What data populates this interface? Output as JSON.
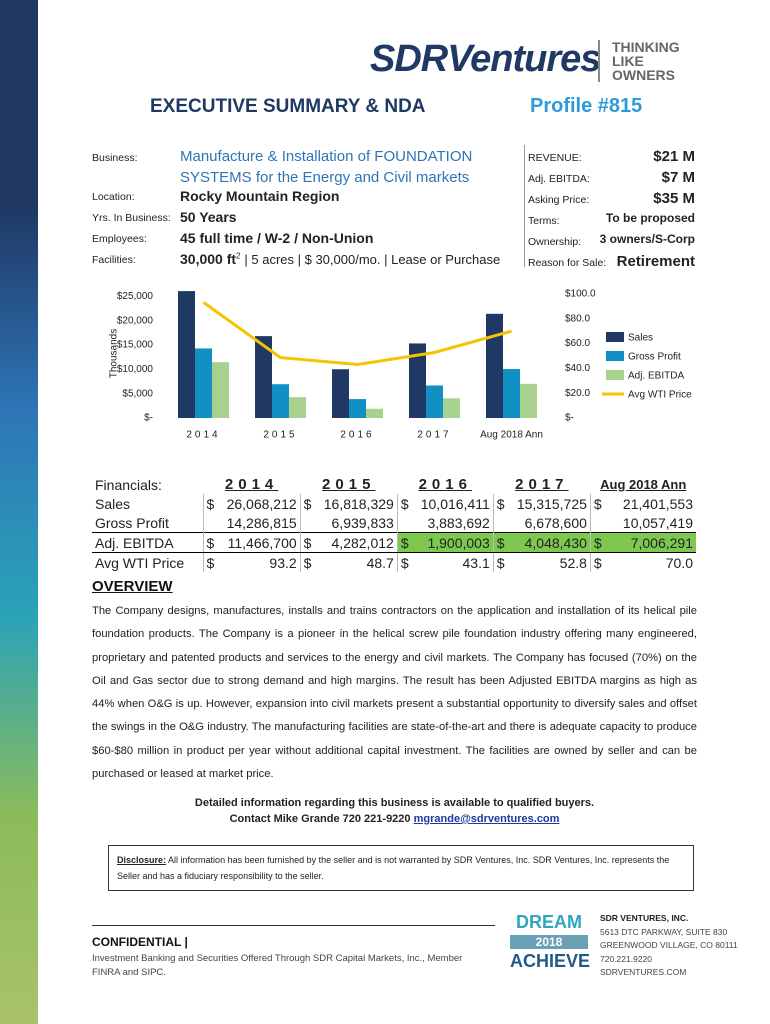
{
  "header": {
    "logo": "SDRVentures",
    "tagline": [
      "THINKING",
      "LIKE",
      "OWNERS"
    ],
    "title": "EXECUTIVE SUMMARY & NDA",
    "profile": "Profile #815"
  },
  "business_info": [
    {
      "label": "Business:",
      "value": "Manufacture & Installation of FOUNDATION SYSTEMS for the Energy and Civil markets"
    },
    {
      "label": "Location:",
      "value": "Rocky Mountain Region"
    },
    {
      "label": "Yrs. In Business:",
      "value": "50 Years"
    },
    {
      "label": "Employees:",
      "value": "45 full time / W-2 / Non-Union"
    }
  ],
  "facilities": {
    "label": "Facilities:",
    "area": "30,000 ft",
    "sup": "2",
    "rest": "| 5 acres | $ 30,000/mo. | Lease or Purchase"
  },
  "deal_info": [
    {
      "label": "REVENUE:",
      "value": "$21 M"
    },
    {
      "label": "Adj. EBITDA:",
      "value": "$7 M"
    },
    {
      "label": "Asking Price:",
      "value": "$35 M"
    },
    {
      "label": "Terms:",
      "value": "To be proposed"
    },
    {
      "label": "Ownership:",
      "value": "3 owners/S-Corp"
    },
    {
      "label": "Reason for Sale:",
      "value": "Retirement"
    }
  ],
  "chart_data": {
    "type": "bar",
    "y_label": "Thousands",
    "categories": [
      "2014",
      "2015",
      "2016",
      "2017",
      "Aug 2018 Ann"
    ],
    "series": [
      {
        "name": "Sales",
        "color": "#1f3864",
        "values": [
          26068,
          16818,
          10016,
          15316,
          21402
        ]
      },
      {
        "name": "Gross Profit",
        "color": "#1190c3",
        "values": [
          14287,
          6940,
          3884,
          6679,
          10057
        ]
      },
      {
        "name": "Adj. EBITDA",
        "color": "#a9d18e",
        "values": [
          11467,
          4282,
          1900,
          4048,
          7006
        ]
      },
      {
        "name": "Avg WTI Price",
        "color": "#f5c400",
        "type": "line",
        "axis": "y2",
        "values": [
          93.2,
          48.7,
          43.1,
          52.8,
          70
        ]
      }
    ],
    "ylim": [
      0,
      26500
    ],
    "yticks": [
      {
        "value": 0,
        "label": "$-"
      },
      {
        "value": 5000,
        "label": "$5,000"
      },
      {
        "value": 10000,
        "label": "$10,000"
      },
      {
        "value": 15000,
        "label": "$15,000"
      },
      {
        "value": 20000,
        "label": "$20,000"
      },
      {
        "value": 25000,
        "label": "$25,000"
      }
    ],
    "y2lim": [
      0,
      104
    ],
    "y2ticks": [
      {
        "value": 0,
        "label": "$-"
      },
      {
        "value": 20,
        "label": "$20.0"
      },
      {
        "value": 40,
        "label": "$40.0"
      },
      {
        "value": 60,
        "label": "$60.0"
      },
      {
        "value": 80,
        "label": "$80.0"
      },
      {
        "value": 100,
        "label": "$100.0"
      }
    ],
    "grid": false,
    "legend": "right"
  },
  "financials": {
    "label": "Financials:",
    "years": [
      "2014",
      "2015",
      "2016",
      "2017",
      "Aug 2018 Ann"
    ],
    "rows": [
      {
        "label": "Sales",
        "cells": [
          {
            "cur": "$",
            "amt": "26,068,212"
          },
          {
            "cur": "$",
            "amt": "16,818,329"
          },
          {
            "cur": "$",
            "amt": "10,016,411"
          },
          {
            "cur": "$",
            "amt": "15,315,725"
          },
          {
            "cur": "$",
            "amt": "21,401,553"
          }
        ]
      },
      {
        "label": "Gross Profit",
        "cells": [
          {
            "amt": "14,286,815"
          },
          {
            "amt": "6,939,833"
          },
          {
            "amt": "3,883,692"
          },
          {
            "amt": "6,678,600"
          },
          {
            "amt": "10,057,419"
          }
        ]
      },
      {
        "label": "Adj. EBITDA",
        "cells": [
          {
            "cur": "$",
            "amt": "11,466,700"
          },
          {
            "cur": "$",
            "amt": "4,282,012"
          },
          {
            "cur": "$",
            "amt": "1,900,003"
          },
          {
            "cur": "$",
            "amt": "4,048,430"
          },
          {
            "cur": "$",
            "amt": "7,006,291"
          }
        ]
      },
      {
        "label": "Avg WTI Price",
        "cells": [
          {
            "cur": "$",
            "amt": "93.2"
          },
          {
            "cur": "$",
            "amt": "48.7"
          },
          {
            "cur": "$",
            "amt": "43.1"
          },
          {
            "cur": "$",
            "amt": "52.8"
          },
          {
            "cur": "$",
            "amt": "70.0"
          }
        ]
      }
    ]
  },
  "overview": {
    "title": "OVERVIEW",
    "text": "The Company designs, manufactures, installs and trains contractors on the application and installation of its helical pile foundation products. The Company is a pioneer in the helical screw pile foundation industry offering many engineered, proprietary and patented products and services to the energy and civil markets. The Company has focused (70%) on the Oil and Gas sector due to strong demand and high margins. The result has been Adjusted EBITDA margins as high as 44% when O&G is up.  However, expansion into civil markets present a substantial opportunity to diversify sales and offset the swings in the O&G industry. The manufacturing facilities are state-of-the-art and there is adequate capacity to produce $60-$80 million in product per year without additional capital investment. The facilities are owned by seller and can be purchased or leased at market price."
  },
  "contact": {
    "line1": "Detailed information regarding this business is available to qualified buyers.",
    "line2": "Contact Mike Grande 720 221-9220",
    "email": "mgrande@sdrventures.com"
  },
  "disclosure": {
    "label": "Disclosure:",
    "text": "All information has been furnished by the seller and is not warranted by SDR Ventures, Inc. SDR Ventures, Inc. represents the Seller and has a fiduciary responsibility to the seller."
  },
  "footer": {
    "confidential": "CONFIDENTIAL |",
    "legal": "Investment Banking and Securities Offered Through SDR Capital Markets, Inc., Member FINRA and SIPC.",
    "badge": [
      "DREAM",
      "2018",
      "ACHIEVE"
    ],
    "company": "SDR VENTURES, INC.",
    "address": [
      "5613 DTC PARKWAY, SUITE 830",
      "GREENWOOD VILLAGE, CO 80111",
      "720.221.9220",
      "SDRVENTURES.COM"
    ]
  }
}
